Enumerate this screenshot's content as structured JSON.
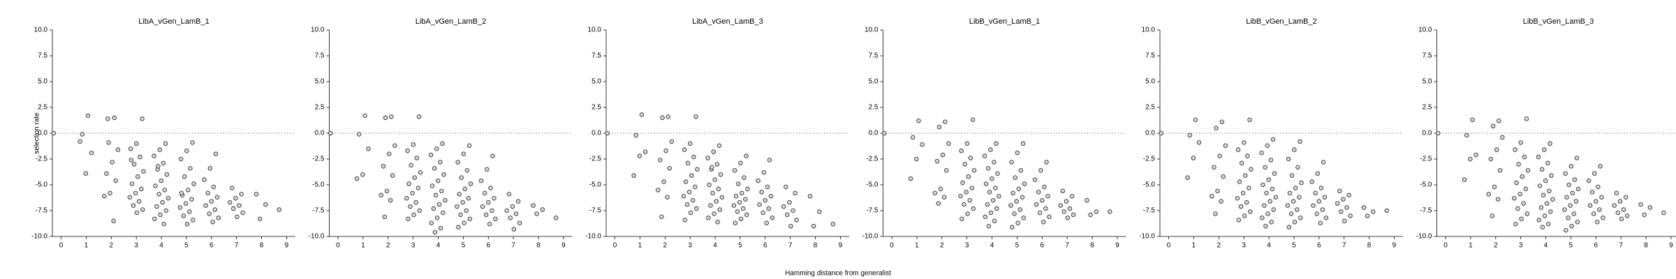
{
  "xlabel": "Hamming distance from generalist",
  "chart_data": [
    {
      "type": "scatter",
      "title": "LibA_vGen_LamB_1",
      "ylabel": "selection rate",
      "color": "#d9d9d9",
      "edgecolor": "#333333",
      "hline": 0,
      "xlim": [
        -0.35,
        9.35
      ],
      "xticks": [
        0,
        1,
        2,
        3,
        4,
        5,
        6,
        7,
        8,
        9
      ],
      "ylim": [
        -10,
        10
      ],
      "yticks": [
        {
          "value": -10,
          "label": "-10.0"
        },
        -7.5,
        {
          "value": -5,
          "label": "-5.0"
        },
        -2.5,
        {
          "value": 0,
          "label": "0.0"
        },
        2.5,
        {
          "value": 5,
          "label": "5.0"
        },
        7.5,
        {
          "value": 10,
          "label": "10.0"
        }
      ],
      "x": [
        0,
        1,
        1,
        1,
        1,
        1,
        2,
        2,
        2,
        2,
        2,
        2,
        2,
        2,
        2,
        2,
        3,
        3,
        3,
        3,
        3,
        3,
        3,
        3,
        3,
        3,
        3,
        3,
        3,
        3,
        3,
        3,
        4,
        4,
        4,
        4,
        4,
        4,
        4,
        4,
        4,
        4,
        4,
        4,
        4,
        4,
        4,
        4,
        4,
        4,
        5,
        5,
        5,
        5,
        5,
        5,
        5,
        5,
        5,
        5,
        5,
        5,
        5,
        5,
        5,
        5,
        6,
        6,
        6,
        6,
        6,
        6,
        6,
        6,
        6,
        6,
        6,
        6,
        7,
        7,
        7,
        7,
        7,
        7,
        7,
        7,
        8,
        8,
        8,
        9
      ],
      "y": [
        0.0,
        1.7,
        -0.1,
        -1.9,
        -3.9,
        -0.8,
        1.5,
        -0.9,
        -1.6,
        -2.8,
        -3.9,
        -4.6,
        -5.8,
        -6.1,
        -8.5,
        1.4,
        1.4,
        -1.0,
        -1.5,
        -2.3,
        -3.0,
        -3.7,
        -4.2,
        -4.9,
        -5.4,
        -5.8,
        -6.2,
        -6.6,
        -7.0,
        -7.4,
        -7.7,
        -2.6,
        -1.0,
        -1.6,
        -2.2,
        -2.9,
        -3.5,
        -4.0,
        -4.6,
        -5.1,
        -5.5,
        -5.9,
        -6.3,
        -6.7,
        -7.1,
        -7.5,
        -7.9,
        -8.3,
        -8.8,
        -3.2,
        -0.9,
        -1.7,
        -2.5,
        -3.4,
        -4.2,
        -4.9,
        -5.5,
        -6.0,
        -6.4,
        -6.8,
        -7.2,
        -7.6,
        -8.0,
        -8.4,
        -8.8,
        -5.8,
        -2.0,
        -3.4,
        -4.5,
        -5.2,
        -5.8,
        -6.2,
        -6.6,
        -7.0,
        -7.4,
        -7.8,
        -8.2,
        -8.6,
        -5.3,
        -5.9,
        -6.3,
        -6.7,
        -7.0,
        -7.3,
        -7.7,
        -8.1,
        -5.9,
        -6.9,
        -8.3,
        -7.4
      ]
    },
    {
      "type": "scatter",
      "title": "LibA_vGen_LamB_2",
      "color": "#d9d9d9",
      "edgecolor": "#333333",
      "hline": 0,
      "xlim": [
        -0.35,
        9.35
      ],
      "xticks": [
        0,
        1,
        2,
        3,
        4,
        5,
        6,
        7,
        8,
        9
      ],
      "ylim": [
        -10,
        10
      ],
      "yticks": [
        {
          "value": -10,
          "label": "-10.0"
        },
        -7.5,
        {
          "value": -5,
          "label": "-5.0"
        },
        -2.5,
        {
          "value": 0,
          "label": "0.0"
        },
        2.5,
        {
          "value": 5,
          "label": "5.0"
        },
        7.5,
        {
          "value": 10,
          "label": "10.0"
        }
      ],
      "x": [
        0,
        1,
        1,
        1,
        1,
        1,
        2,
        2,
        2,
        2,
        2,
        2,
        2,
        2,
        2,
        2,
        3,
        3,
        3,
        3,
        3,
        3,
        3,
        3,
        3,
        3,
        3,
        3,
        3,
        3,
        3,
        3,
        4,
        4,
        4,
        4,
        4,
        4,
        4,
        4,
        4,
        4,
        4,
        4,
        4,
        4,
        4,
        4,
        4,
        4,
        5,
        5,
        5,
        5,
        5,
        5,
        5,
        5,
        5,
        5,
        5,
        5,
        5,
        5,
        5,
        5,
        6,
        6,
        6,
        6,
        6,
        6,
        6,
        6,
        6,
        6,
        6,
        6,
        7,
        7,
        7,
        7,
        7,
        7,
        7,
        7,
        8,
        8,
        8,
        9
      ],
      "y": [
        0.0,
        1.7,
        -0.1,
        -1.5,
        -4.0,
        -4.4,
        1.6,
        1.5,
        -1.2,
        -2.0,
        -3.2,
        -4.1,
        -5.6,
        -6.0,
        -6.5,
        -8.1,
        1.6,
        -1.1,
        -1.7,
        -2.4,
        -3.1,
        -3.8,
        -4.3,
        -4.9,
        -5.3,
        -5.8,
        -6.3,
        -6.7,
        -7.1,
        -7.5,
        -7.9,
        -8.3,
        -1.0,
        -1.5,
        -2.1,
        -2.8,
        -3.4,
        -4.0,
        -4.6,
        -5.1,
        -5.6,
        -6.0,
        -6.5,
        -6.9,
        -7.3,
        -7.7,
        -8.2,
        -8.7,
        -9.2,
        -9.6,
        -1.2,
        -2.0,
        -2.8,
        -3.6,
        -4.3,
        -4.9,
        -5.4,
        -5.9,
        -6.3,
        -6.7,
        -7.1,
        -7.5,
        -7.9,
        -8.3,
        -8.7,
        -9.1,
        -2.2,
        -3.5,
        -4.6,
        -5.3,
        -5.8,
        -6.3,
        -6.7,
        -7.1,
        -7.5,
        -7.9,
        -8.3,
        -8.8,
        -5.9,
        -6.6,
        -7.1,
        -7.5,
        -7.8,
        -8.2,
        -8.7,
        -9.3,
        -7.0,
        -7.4,
        -7.8,
        -8.2
      ]
    },
    {
      "type": "scatter",
      "title": "LibA_vGen_LamB_3",
      "color": "#d9d9d9",
      "edgecolor": "#333333",
      "hline": 0,
      "xlim": [
        -0.35,
        9.35
      ],
      "xticks": [
        0,
        1,
        2,
        3,
        4,
        5,
        6,
        7,
        8,
        9
      ],
      "ylim": [
        -10,
        10
      ],
      "yticks": [
        {
          "value": -10,
          "label": "-10.0"
        },
        -7.5,
        {
          "value": -5,
          "label": "-5.0"
        },
        -2.5,
        {
          "value": 0,
          "label": "0.0"
        },
        2.5,
        {
          "value": 5,
          "label": "5.0"
        },
        7.5,
        {
          "value": 10,
          "label": "10.0"
        }
      ],
      "x": [
        0,
        1,
        1,
        1,
        1,
        1,
        2,
        2,
        2,
        2,
        2,
        2,
        2,
        2,
        2,
        2,
        3,
        3,
        3,
        3,
        3,
        3,
        3,
        3,
        3,
        3,
        3,
        3,
        3,
        3,
        3,
        3,
        4,
        4,
        4,
        4,
        4,
        4,
        4,
        4,
        4,
        4,
        4,
        4,
        4,
        4,
        4,
        4,
        4,
        4,
        5,
        5,
        5,
        5,
        5,
        5,
        5,
        5,
        5,
        5,
        5,
        5,
        5,
        5,
        5,
        5,
        6,
        6,
        6,
        6,
        6,
        6,
        6,
        6,
        6,
        6,
        6,
        6,
        7,
        7,
        7,
        7,
        7,
        7,
        7,
        7,
        8,
        8,
        8,
        9
      ],
      "y": [
        0.0,
        1.8,
        -0.2,
        -1.8,
        -2.2,
        -4.1,
        1.6,
        1.5,
        -0.8,
        -1.7,
        -2.6,
        -3.4,
        -4.7,
        -5.5,
        -6.2,
        -8.1,
        1.6,
        -1.0,
        -1.6,
        -2.3,
        -2.9,
        -3.5,
        -4.1,
        -4.7,
        -5.2,
        -5.7,
        -6.1,
        -6.5,
        -6.9,
        -7.3,
        -7.7,
        -8.4,
        -1.2,
        -1.8,
        -2.4,
        -3.0,
        -3.5,
        -4.0,
        -4.5,
        -5.0,
        -5.4,
        -5.8,
        -6.2,
        -6.6,
        -7.0,
        -7.4,
        -7.8,
        -8.2,
        -8.6,
        -3.3,
        -2.2,
        -2.9,
        -3.6,
        -4.3,
        -4.9,
        -5.4,
        -5.8,
        -6.1,
        -6.4,
        -6.7,
        -7.0,
        -7.3,
        -7.6,
        -7.9,
        -8.3,
        -8.7,
        -2.6,
        -3.8,
        -4.6,
        -5.2,
        -5.7,
        -6.1,
        -6.5,
        -6.9,
        -7.3,
        -7.7,
        -8.2,
        -8.7,
        -5.2,
        -5.8,
        -6.7,
        -7.1,
        -7.5,
        -7.9,
        -8.4,
        -9.0,
        -6.1,
        -7.6,
        -9.0,
        -8.8
      ]
    },
    {
      "type": "scatter",
      "title": "LibB_vGen_LamB_1",
      "color": "#d9d9d9",
      "edgecolor": "#333333",
      "hline": 0,
      "xlim": [
        -0.35,
        9.35
      ],
      "xticks": [
        0,
        1,
        2,
        3,
        4,
        5,
        6,
        7,
        8,
        9
      ],
      "ylim": [
        -10,
        10
      ],
      "yticks": [
        {
          "value": -10,
          "label": "-10.0"
        },
        -7.5,
        {
          "value": -5,
          "label": "-5.0"
        },
        -2.5,
        {
          "value": 0,
          "label": "0.0"
        },
        2.5,
        {
          "value": 5,
          "label": "5.0"
        },
        7.5,
        {
          "value": 10,
          "label": "10.0"
        }
      ],
      "x": [
        0,
        1,
        1,
        1,
        1,
        1,
        2,
        2,
        2,
        2,
        2,
        2,
        2,
        2,
        2,
        2,
        3,
        3,
        3,
        3,
        3,
        3,
        3,
        3,
        3,
        3,
        3,
        3,
        3,
        3,
        3,
        3,
        4,
        4,
        4,
        4,
        4,
        4,
        4,
        4,
        4,
        4,
        4,
        4,
        4,
        4,
        4,
        4,
        4,
        4,
        5,
        5,
        5,
        5,
        5,
        5,
        5,
        5,
        5,
        5,
        5,
        5,
        5,
        5,
        5,
        5,
        6,
        6,
        6,
        6,
        6,
        6,
        6,
        6,
        6,
        6,
        6,
        6,
        7,
        7,
        7,
        7,
        7,
        7,
        7,
        7,
        8,
        8,
        8,
        9
      ],
      "y": [
        0.0,
        1.2,
        -0.4,
        -1.1,
        -2.5,
        -4.4,
        1.1,
        0.6,
        -1.0,
        -2.1,
        -2.7,
        -3.6,
        -5.4,
        -5.8,
        -6.2,
        -6.8,
        1.3,
        -1.0,
        -1.7,
        -2.4,
        -3.0,
        -3.6,
        -4.2,
        -4.8,
        -5.3,
        -5.7,
        -6.1,
        -6.5,
        -6.9,
        -7.3,
        -7.8,
        -8.3,
        -1.0,
        -1.6,
        -2.2,
        -2.8,
        -3.4,
        -3.9,
        -4.4,
        -4.9,
        -5.3,
        -5.7,
        -6.1,
        -6.5,
        -6.9,
        -7.3,
        -7.7,
        -8.1,
        -8.5,
        -9.0,
        -1.0,
        -1.9,
        -2.8,
        -3.6,
        -4.3,
        -4.9,
        -5.4,
        -5.8,
        -6.2,
        -6.6,
        -7.0,
        -7.4,
        -7.8,
        -8.2,
        -8.7,
        -9.1,
        -2.8,
        -3.6,
        -4.5,
        -5.2,
        -5.7,
        -6.1,
        -6.5,
        -6.9,
        -7.3,
        -7.7,
        -8.1,
        -8.6,
        -5.6,
        -6.1,
        -6.6,
        -7.0,
        -7.3,
        -7.6,
        -7.9,
        -8.2,
        -6.5,
        -7.6,
        -7.9,
        -7.6
      ]
    },
    {
      "type": "scatter",
      "title": "LibB_vGen_LamB_2",
      "color": "#d9d9d9",
      "edgecolor": "#333333",
      "hline": 0,
      "xlim": [
        -0.35,
        9.35
      ],
      "xticks": [
        0,
        1,
        2,
        3,
        4,
        5,
        6,
        7,
        8,
        9
      ],
      "ylim": [
        -10,
        10
      ],
      "yticks": [
        {
          "value": -10,
          "label": "-10.0"
        },
        -7.5,
        {
          "value": -5,
          "label": "-5.0"
        },
        -2.5,
        {
          "value": 0,
          "label": "0.0"
        },
        2.5,
        {
          "value": 5,
          "label": "5.0"
        },
        7.5,
        {
          "value": 10,
          "label": "10.0"
        }
      ],
      "x": [
        0,
        1,
        1,
        1,
        1,
        1,
        2,
        2,
        2,
        2,
        2,
        2,
        2,
        2,
        2,
        2,
        3,
        3,
        3,
        3,
        3,
        3,
        3,
        3,
        3,
        3,
        3,
        3,
        3,
        3,
        3,
        3,
        4,
        4,
        4,
        4,
        4,
        4,
        4,
        4,
        4,
        4,
        4,
        4,
        4,
        4,
        4,
        4,
        4,
        4,
        5,
        5,
        5,
        5,
        5,
        5,
        5,
        5,
        5,
        5,
        5,
        5,
        5,
        5,
        5,
        5,
        6,
        6,
        6,
        6,
        6,
        6,
        6,
        6,
        6,
        6,
        6,
        6,
        7,
        7,
        7,
        7,
        7,
        7,
        7,
        7,
        8,
        8,
        8,
        9
      ],
      "y": [
        0.0,
        1.3,
        -0.2,
        -0.9,
        -2.4,
        -4.3,
        1.1,
        0.5,
        -1.2,
        -2.2,
        -3.3,
        -4.2,
        -5.6,
        -6.1,
        -6.6,
        -7.8,
        1.3,
        -0.9,
        -1.6,
        -2.2,
        -2.9,
        -3.5,
        -4.1,
        -4.7,
        -5.3,
        -5.8,
        -6.3,
        -6.7,
        -7.1,
        -7.6,
        -8.0,
        -8.4,
        -0.6,
        -1.2,
        -1.9,
        -2.6,
        -3.3,
        -3.9,
        -4.5,
        -5.0,
        -5.4,
        -5.8,
        -6.2,
        -6.6,
        -7.0,
        -7.4,
        -7.8,
        -8.2,
        -8.6,
        -9.0,
        -0.8,
        -1.6,
        -2.5,
        -3.3,
        -4.1,
        -4.8,
        -5.3,
        -5.8,
        -6.2,
        -6.6,
        -7.0,
        -7.4,
        -7.8,
        -8.2,
        -8.6,
        -9.1,
        -2.8,
        -3.9,
        -4.7,
        -5.3,
        -5.8,
        -6.2,
        -6.6,
        -7.0,
        -7.4,
        -7.8,
        -8.2,
        -8.7,
        -5.6,
        -6.0,
        -6.4,
        -6.8,
        -7.2,
        -7.6,
        -8.0,
        -8.5,
        -7.2,
        -7.6,
        -8.0,
        -7.5
      ]
    },
    {
      "type": "scatter",
      "title": "LibB_vGen_LamB_3",
      "color": "#d9d9d9",
      "edgecolor": "#333333",
      "hline": 0,
      "xlim": [
        -0.35,
        9.35
      ],
      "xticks": [
        0,
        1,
        2,
        3,
        4,
        5,
        6,
        7,
        8,
        9
      ],
      "ylim": [
        -10,
        10
      ],
      "yticks": [
        {
          "value": -10,
          "label": "-10.0"
        },
        -7.5,
        {
          "value": -5,
          "label": "-5.0"
        },
        -2.5,
        {
          "value": 0,
          "label": "0.0"
        },
        2.5,
        {
          "value": 5,
          "label": "5.0"
        },
        7.5,
        {
          "value": 10,
          "label": "10.0"
        }
      ],
      "x": [
        0,
        1,
        1,
        1,
        1,
        1,
        2,
        2,
        2,
        2,
        2,
        2,
        2,
        2,
        2,
        2,
        3,
        3,
        3,
        3,
        3,
        3,
        3,
        3,
        3,
        3,
        3,
        3,
        3,
        3,
        3,
        3,
        4,
        4,
        4,
        4,
        4,
        4,
        4,
        4,
        4,
        4,
        4,
        4,
        4,
        4,
        4,
        4,
        4,
        4,
        5,
        5,
        5,
        5,
        5,
        5,
        5,
        5,
        5,
        5,
        5,
        5,
        5,
        5,
        5,
        5,
        6,
        6,
        6,
        6,
        6,
        6,
        6,
        6,
        6,
        6,
        6,
        6,
        7,
        7,
        7,
        7,
        7,
        7,
        7,
        7,
        8,
        8,
        8,
        9
      ],
      "y": [
        0.0,
        1.3,
        -0.2,
        -2.1,
        -2.5,
        -4.5,
        1.2,
        0.7,
        -0.4,
        -1.6,
        -2.5,
        -3.6,
        -5.2,
        -5.9,
        -6.4,
        -8.0,
        1.4,
        -0.9,
        -1.6,
        -2.3,
        -3.0,
        -3.6,
        -4.2,
        -4.8,
        -5.4,
        -5.9,
        -6.3,
        -6.8,
        -7.3,
        -7.8,
        -8.3,
        -8.8,
        -1.0,
        -1.6,
        -2.3,
        -2.9,
        -3.5,
        -4.1,
        -4.6,
        -5.1,
        -5.6,
        -6.0,
        -6.4,
        -6.8,
        -7.2,
        -7.6,
        -8.0,
        -8.4,
        -8.8,
        -9.1,
        -2.4,
        -3.2,
        -3.9,
        -4.5,
        -5.0,
        -5.4,
        -5.8,
        -6.2,
        -6.6,
        -7.0,
        -7.4,
        -7.8,
        -8.2,
        -8.6,
        -9.0,
        -9.4,
        -3.2,
        -3.9,
        -4.6,
        -5.2,
        -5.7,
        -6.2,
        -6.6,
        -7.0,
        -7.4,
        -7.8,
        -8.2,
        -8.6,
        -5.8,
        -6.2,
        -6.6,
        -7.0,
        -7.4,
        -7.7,
        -8.0,
        -8.3,
        -6.9,
        -7.2,
        -7.9,
        -7.7
      ]
    }
  ]
}
